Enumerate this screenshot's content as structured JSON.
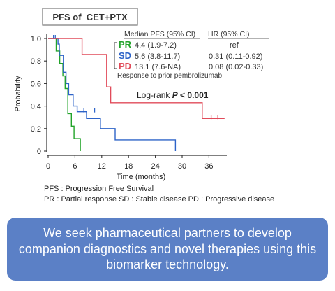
{
  "chart_data": {
    "type": "line",
    "title": "PFS of  CET+PTX",
    "xlabel": "Time (months)",
    "ylabel": "Probability",
    "xlim": [
      0,
      40
    ],
    "ylim": [
      0,
      1.0
    ],
    "x_ticks": [
      0,
      6,
      12,
      18,
      24,
      30,
      36
    ],
    "y_ticks": [
      0,
      0.2,
      0.4,
      0.6,
      0.8,
      1.0
    ],
    "y_tick_labels": [
      "0",
      "0.2",
      "0.4",
      "0.6",
      "0.8",
      "1.0"
    ],
    "curve_style": "step",
    "table_headers": {
      "median": "Median PFS (95% CI)",
      "hr": "HR (95% CI)"
    },
    "series": [
      {
        "name": "PR",
        "color": "#22a32a",
        "median_pfs": "4.4 (1.9-7.2)",
        "hr": "ref",
        "points": [
          [
            0,
            1.0
          ],
          [
            1.8,
            1.0
          ],
          [
            1.8,
            0.889
          ],
          [
            2.6,
            0.889
          ],
          [
            2.6,
            0.778
          ],
          [
            3.3,
            0.778
          ],
          [
            3.3,
            0.667
          ],
          [
            3.8,
            0.667
          ],
          [
            3.8,
            0.556
          ],
          [
            4.4,
            0.556
          ],
          [
            4.4,
            0.333
          ],
          [
            5.2,
            0.333
          ],
          [
            5.2,
            0.222
          ],
          [
            5.8,
            0.222
          ],
          [
            5.8,
            0.111
          ],
          [
            7.2,
            0.111
          ],
          [
            7.2,
            0.0
          ]
        ],
        "censored": []
      },
      {
        "name": "SD",
        "color": "#2d63c8",
        "median_pfs": "5.6 (3.8-11.7)",
        "hr": "0.31 (0.11-0.92)",
        "points": [
          [
            0,
            1.0
          ],
          [
            2.2,
            1.0
          ],
          [
            2.2,
            0.95
          ],
          [
            2.5,
            0.95
          ],
          [
            2.5,
            0.85
          ],
          [
            3.4,
            0.85
          ],
          [
            3.4,
            0.7
          ],
          [
            4.0,
            0.7
          ],
          [
            4.0,
            0.6
          ],
          [
            4.6,
            0.6
          ],
          [
            4.6,
            0.5
          ],
          [
            5.6,
            0.5
          ],
          [
            5.6,
            0.4
          ],
          [
            6.5,
            0.4
          ],
          [
            6.5,
            0.35
          ],
          [
            8.6,
            0.35
          ],
          [
            8.6,
            0.29
          ],
          [
            11.7,
            0.29
          ],
          [
            11.7,
            0.2
          ],
          [
            15.0,
            0.2
          ],
          [
            15.0,
            0.1
          ],
          [
            28.5,
            0.1
          ],
          [
            28.5,
            0.0
          ]
        ],
        "censored": [
          [
            1.2,
            1.0
          ],
          [
            1.6,
            1.0
          ],
          [
            8.0,
            0.35
          ],
          [
            10.4,
            0.35
          ]
        ]
      },
      {
        "name": "PD",
        "color": "#e14b5a",
        "median_pfs": "13.1 (7.6-NA)",
        "hr": "0.08 (0.02-0.33)",
        "points": [
          [
            0,
            1.0
          ],
          [
            7.6,
            1.0
          ],
          [
            7.6,
            0.857
          ],
          [
            13.1,
            0.857
          ],
          [
            13.1,
            0.57
          ],
          [
            14.0,
            0.57
          ],
          [
            14.0,
            0.43
          ],
          [
            34.5,
            0.43
          ],
          [
            34.5,
            0.29
          ],
          [
            39.5,
            0.29
          ]
        ],
        "censored": [
          [
            36.5,
            0.29
          ],
          [
            38.0,
            0.29
          ]
        ]
      }
    ],
    "annotations": {
      "response_note": "Response to prior pembrolizumab",
      "logrank_prefix": "Log-rank ",
      "logrank_p": "P",
      "logrank_value": " < 0.001"
    },
    "grid": false
  },
  "footnotes": {
    "line1": "PFS : Progression Free Survival",
    "line2": "PR : Partial response SD : Stable disease  PD : Progressive disease"
  },
  "banner": {
    "text": "We seek pharmaceutical partners to develop companion diagnostics and novel therapies using this biomarker technology.",
    "color": "#5b80c6"
  }
}
